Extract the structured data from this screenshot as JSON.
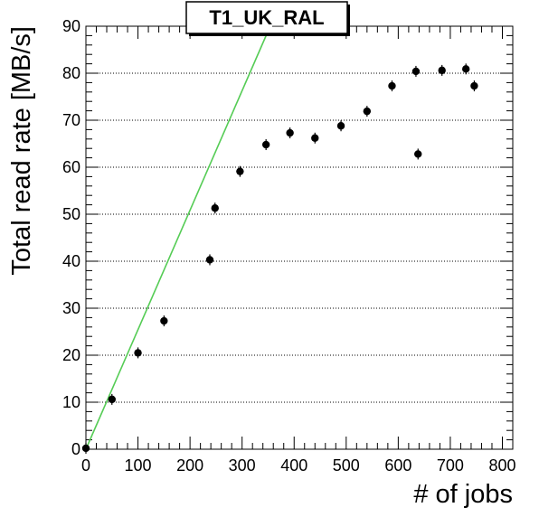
{
  "chart_data": {
    "type": "scatter",
    "title": "T1_UK_RAL",
    "xlabel": "# of jobs",
    "ylabel": "Total read rate [MB/s]",
    "xlim": [
      0,
      820
    ],
    "ylim": [
      0,
      90
    ],
    "x_ticks": [
      0,
      100,
      200,
      300,
      400,
      500,
      600,
      700,
      800
    ],
    "y_ticks": [
      0,
      10,
      20,
      30,
      40,
      50,
      60,
      70,
      80,
      90
    ],
    "grid": "horizontal dotted",
    "colors": {
      "points": "#000000",
      "fit_line": "#55cc55"
    },
    "points": [
      {
        "x": 0,
        "y": 0.2
      },
      {
        "x": 50,
        "y": 10.6
      },
      {
        "x": 100,
        "y": 20.5
      },
      {
        "x": 150,
        "y": 27.3
      },
      {
        "x": 238,
        "y": 40.3
      },
      {
        "x": 248,
        "y": 51.3
      },
      {
        "x": 296,
        "y": 59.1
      },
      {
        "x": 346,
        "y": 64.8
      },
      {
        "x": 392,
        "y": 67.3
      },
      {
        "x": 440,
        "y": 66.2
      },
      {
        "x": 490,
        "y": 68.8
      },
      {
        "x": 540,
        "y": 71.9
      },
      {
        "x": 588,
        "y": 77.3
      },
      {
        "x": 634,
        "y": 80.4
      },
      {
        "x": 638,
        "y": 62.8
      },
      {
        "x": 684,
        "y": 80.6
      },
      {
        "x": 730,
        "y": 80.9
      },
      {
        "x": 746,
        "y": 77.3
      }
    ],
    "fit_line": {
      "x": [
        0,
        354
      ],
      "y": [
        0,
        90
      ]
    }
  }
}
